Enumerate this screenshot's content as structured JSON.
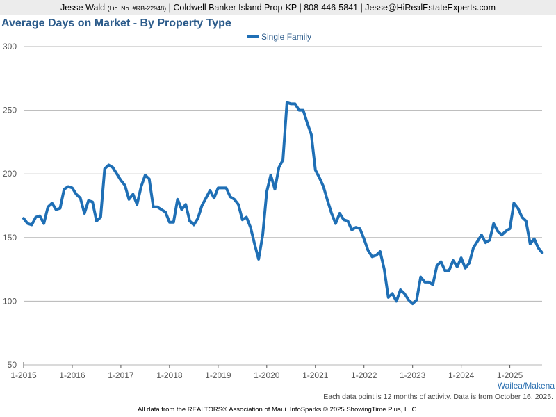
{
  "header": {
    "name": "Jesse Wald",
    "license": "(Lic. No. #RB-22948)",
    "rest": "| Coldwell Banker Island Prop-KP | 808-446-5841 | Jesse@HiRealEstateExperts.com"
  },
  "area_label": "Wailea/Makena",
  "note": "Each data point is 12 months of activity. Data is from October 16, 2025.",
  "footer": "All data from the REALTORS® Association of Maui. InfoSparks © 2025 ShowingTime Plus, LLC.",
  "colors": {
    "series": "#1f6fb5",
    "title": "#2a5a8a",
    "grid": "#b5b5b5",
    "axis": "#555555"
  },
  "chart_data": {
    "type": "line",
    "title": "Average Days on Market - By Property Type",
    "xlabel": "",
    "ylabel": "",
    "ylim": [
      50,
      300
    ],
    "yticks": [
      50,
      100,
      150,
      200,
      250,
      300
    ],
    "x_start": "2015-01",
    "x_tick_labels": [
      "1-2015",
      "1-2016",
      "1-2017",
      "1-2018",
      "1-2019",
      "1-2020",
      "1-2021",
      "1-2022",
      "1-2023",
      "1-2024",
      "1-2025"
    ],
    "legend_position": "top-center",
    "series": [
      {
        "name": "Single Family",
        "values": [
          165,
          161,
          160,
          166,
          167,
          161,
          174,
          177,
          172,
          173,
          188,
          190,
          189,
          184,
          181,
          169,
          179,
          178,
          163,
          166,
          204,
          207,
          205,
          200,
          195,
          191,
          180,
          184,
          176,
          190,
          199,
          196,
          174,
          174,
          172,
          170,
          162,
          162,
          180,
          172,
          176,
          163,
          160,
          165,
          175,
          181,
          187,
          181,
          189,
          189,
          189,
          182,
          180,
          176,
          164,
          166,
          158,
          145,
          133,
          152,
          186,
          199,
          188,
          205,
          211,
          256,
          255,
          255,
          250,
          250,
          240,
          231,
          203,
          197,
          190,
          179,
          169,
          161,
          169,
          164,
          163,
          156,
          158,
          157,
          149,
          140,
          135,
          136,
          139,
          125,
          103,
          106,
          100,
          109,
          106,
          101,
          98,
          101,
          119,
          115,
          115,
          113,
          128,
          131,
          124,
          124,
          132,
          127,
          134,
          126,
          130,
          142,
          147,
          152,
          146,
          148,
          161,
          155,
          152,
          155,
          157,
          177,
          173,
          166,
          163,
          145,
          149,
          142,
          138
        ]
      }
    ]
  }
}
